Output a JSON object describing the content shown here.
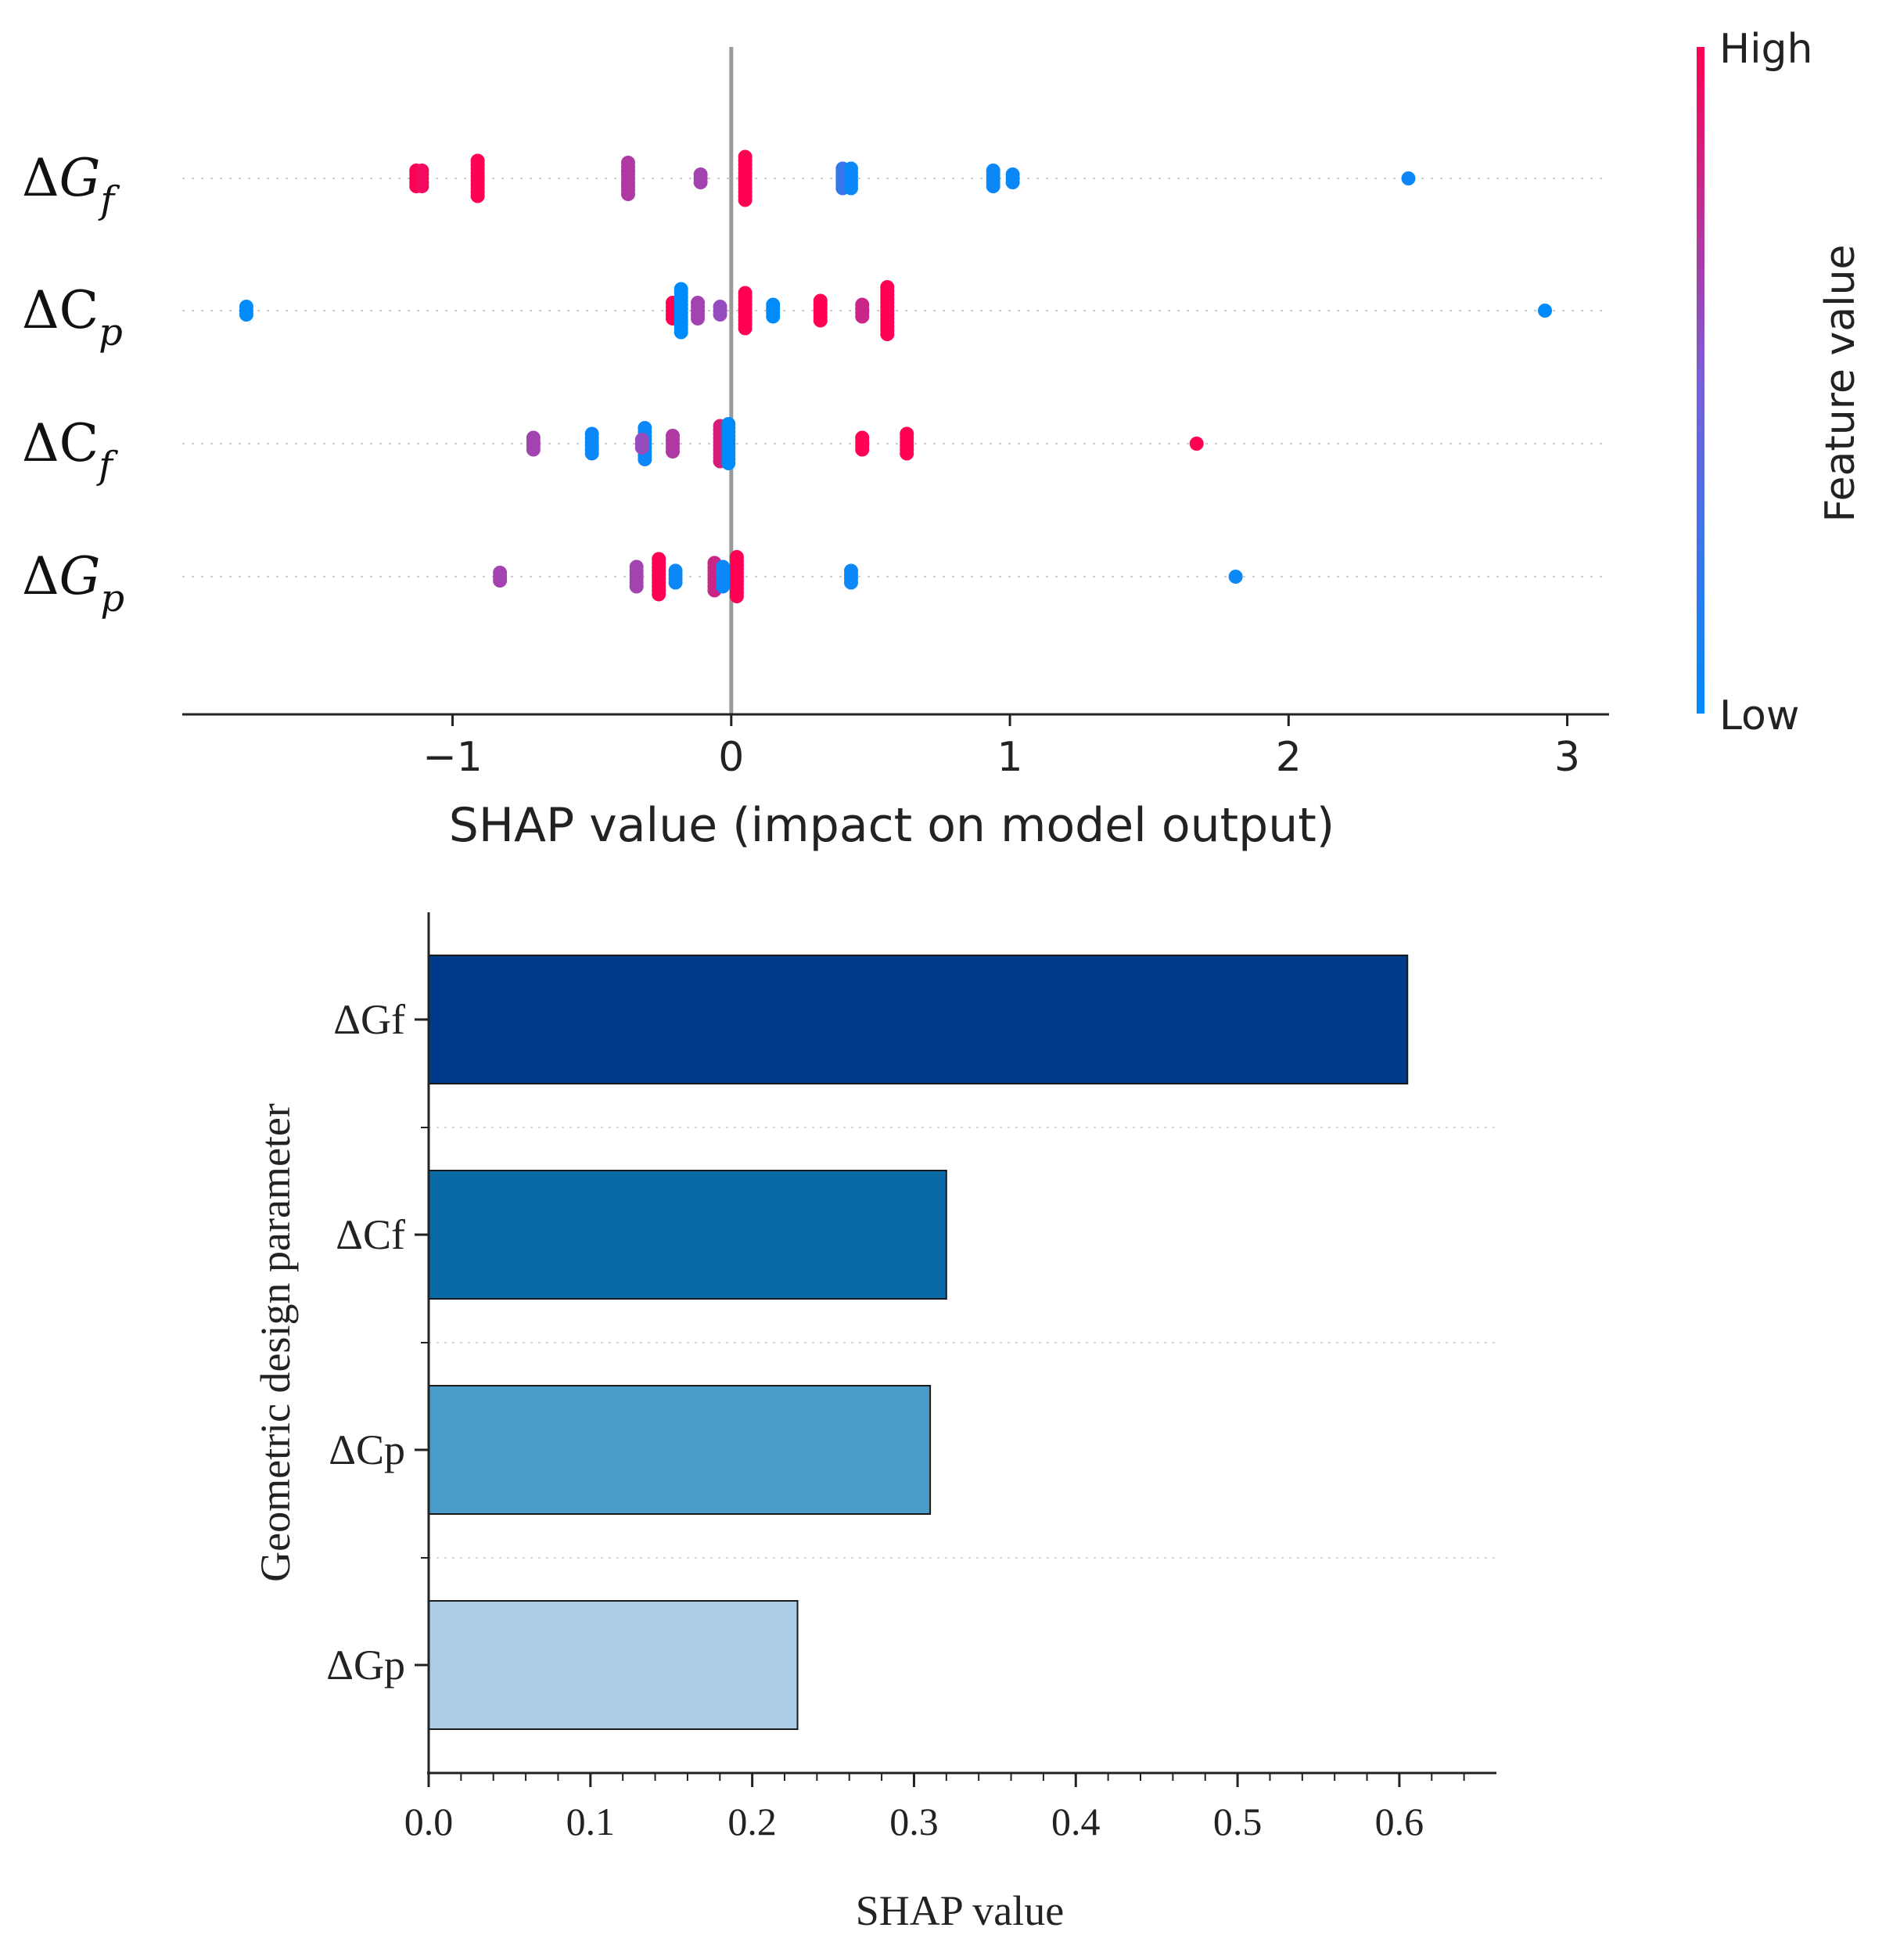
{
  "chart_data": [
    {
      "type": "scatter",
      "subtype": "shap-beeswarm",
      "xlabel": "SHAP value (impact on model output)",
      "xlim": [
        -1.97,
        3.15
      ],
      "xticks": [
        -1,
        0,
        1,
        2,
        3
      ],
      "xtick_labels": [
        "−1",
        "0",
        "1",
        "2",
        "3"
      ],
      "zero_line": 0,
      "grid": false,
      "features": [
        {
          "id": "dGf",
          "symbol": "Δ",
          "base": "G",
          "sub": "f",
          "points": [
            {
              "x": -1.13,
              "v": 1.0,
              "n": 5
            },
            {
              "x": -1.11,
              "v": 0.95,
              "n": 5
            },
            {
              "x": -0.91,
              "v": 1.0,
              "n": 10
            },
            {
              "x": -0.37,
              "v": 0.7,
              "n": 9
            },
            {
              "x": -0.11,
              "v": 0.65,
              "n": 3
            },
            {
              "x": 0.05,
              "v": 1.0,
              "n": 12
            },
            {
              "x": 0.4,
              "v": 0.22,
              "n": 6
            },
            {
              "x": 0.43,
              "v": 0.05,
              "n": 6
            },
            {
              "x": 0.94,
              "v": 0.05,
              "n": 5
            },
            {
              "x": 1.01,
              "v": 0.05,
              "n": 3
            },
            {
              "x": 2.43,
              "v": 0.05,
              "n": 1
            }
          ]
        },
        {
          "id": "dCp",
          "symbol": "Δ",
          "base": "C",
          "sub": "p",
          "points": [
            {
              "x": -1.74,
              "v": 0.0,
              "n": 3
            },
            {
              "x": -0.21,
              "v": 1.0,
              "n": 5
            },
            {
              "x": -0.18,
              "v": 0.0,
              "n": 12
            },
            {
              "x": -0.12,
              "v": 0.65,
              "n": 5
            },
            {
              "x": -0.04,
              "v": 0.6,
              "n": 3
            },
            {
              "x": 0.05,
              "v": 1.0,
              "n": 10
            },
            {
              "x": 0.15,
              "v": 0.0,
              "n": 4
            },
            {
              "x": 0.32,
              "v": 1.0,
              "n": 6
            },
            {
              "x": 0.47,
              "v": 0.8,
              "n": 4
            },
            {
              "x": 0.56,
              "v": 1.0,
              "n": 13
            },
            {
              "x": 2.92,
              "v": 0.0,
              "n": 1
            }
          ]
        },
        {
          "id": "dCf",
          "symbol": "Δ",
          "base": "C",
          "sub": "f",
          "points": [
            {
              "x": -0.71,
              "v": 0.65,
              "n": 4
            },
            {
              "x": -0.5,
              "v": 0.05,
              "n": 6
            },
            {
              "x": -0.31,
              "v": 0.05,
              "n": 9
            },
            {
              "x": -0.32,
              "v": 0.6,
              "n": 3
            },
            {
              "x": -0.21,
              "v": 0.7,
              "n": 5
            },
            {
              "x": -0.04,
              "v": 0.85,
              "n": 10
            },
            {
              "x": -0.01,
              "v": 0.0,
              "n": 11
            },
            {
              "x": 0.47,
              "v": 1.0,
              "n": 4
            },
            {
              "x": 0.63,
              "v": 1.0,
              "n": 6
            },
            {
              "x": 1.67,
              "v": 1.0,
              "n": 1
            }
          ]
        },
        {
          "id": "dGp",
          "symbol": "Δ",
          "base": "G",
          "sub": "p",
          "points": [
            {
              "x": -0.83,
              "v": 0.65,
              "n": 3
            },
            {
              "x": -0.34,
              "v": 0.65,
              "n": 6
            },
            {
              "x": -0.26,
              "v": 1.0,
              "n": 10
            },
            {
              "x": -0.2,
              "v": 0.05,
              "n": 4
            },
            {
              "x": -0.06,
              "v": 0.8,
              "n": 8
            },
            {
              "x": -0.03,
              "v": 0.05,
              "n": 6
            },
            {
              "x": 0.02,
              "v": 1.0,
              "n": 11
            },
            {
              "x": 0.43,
              "v": 0.05,
              "n": 4
            },
            {
              "x": 1.81,
              "v": 0.05,
              "n": 1
            }
          ]
        }
      ],
      "colorbar": {
        "label": "Feature value",
        "high_label": "High",
        "low_label": "Low",
        "low_color": "#008bfb",
        "mid_color": "#7a5fd8",
        "high_color": "#ff0052"
      }
    },
    {
      "type": "bar",
      "orientation": "horizontal",
      "categories": [
        "ΔGf",
        "ΔCf",
        "ΔCp",
        "ΔGp"
      ],
      "values": [
        0.605,
        0.32,
        0.31,
        0.228
      ],
      "colors": [
        "#003b8a",
        "#0a6aa8",
        "#4a9dcb",
        "#aecde6"
      ],
      "xlabel": "SHAP value",
      "ylabel": "Geometric design parameter",
      "xlim": [
        0,
        0.66
      ],
      "xticks": [
        0.0,
        0.1,
        0.2,
        0.3,
        0.4,
        0.5,
        0.6
      ],
      "xtick_labels": [
        "0.0",
        "0.1",
        "0.2",
        "0.3",
        "0.4",
        "0.5",
        "0.6"
      ],
      "grid": true
    }
  ]
}
